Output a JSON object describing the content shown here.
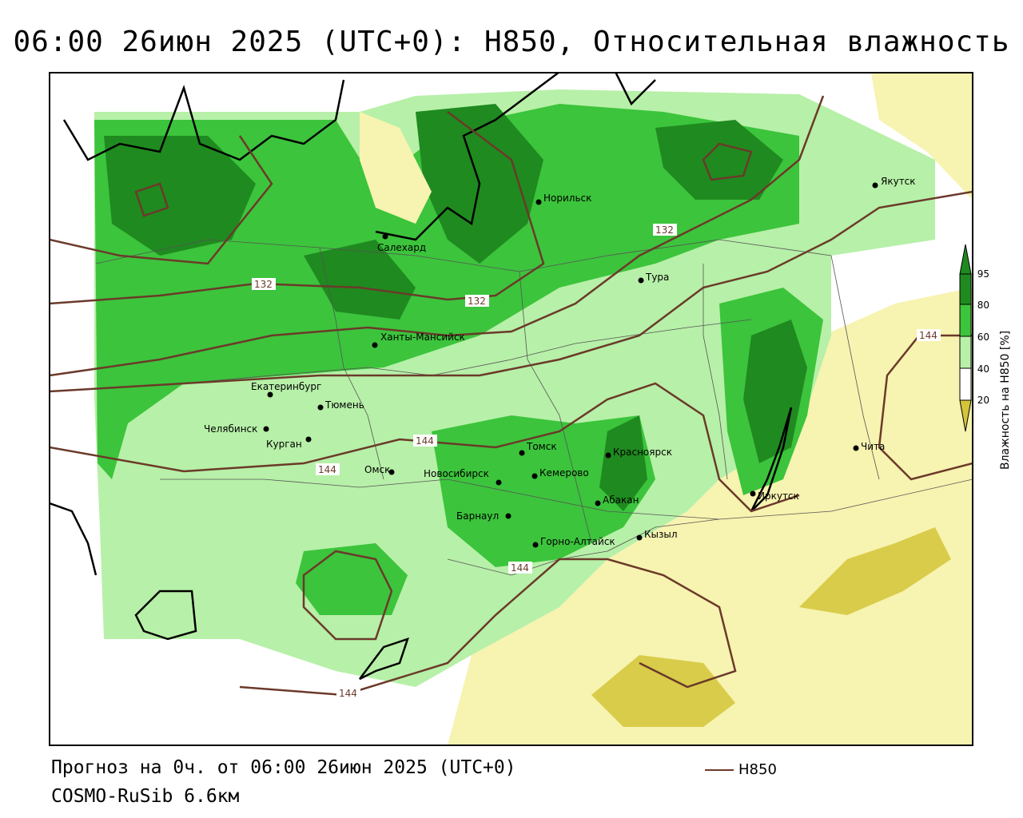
{
  "title": "06:00 26июн 2025 (UTC+0): H850, Относительная влажность",
  "footer": {
    "forecast": "Прогноз на 0ч. от 06:00 26июн 2025 (UTC+0)",
    "model": "COSMO-RuSib 6.6км"
  },
  "legend": {
    "contour_label": "H850",
    "colorbar_title": "Влажность на H850 [%]",
    "ticks": [
      "95",
      "80",
      "60",
      "40",
      "20"
    ],
    "colors": {
      "c95": "#1f8a1f",
      "c80": "#3cc43c",
      "c60": "#b7f0a8",
      "c40": "#ffffff",
      "c20": "#f7f3b0",
      "c0": "#d4c43a"
    },
    "contour_color": "#6b3a2a"
  },
  "contour_values": [
    "132",
    "132",
    "132",
    "144",
    "144",
    "144",
    "144",
    "144"
  ],
  "cities": [
    {
      "name": "Якутск"
    },
    {
      "name": "Норильск"
    },
    {
      "name": "Салехард"
    },
    {
      "name": "Тура"
    },
    {
      "name": "Ханты-Мансийск"
    },
    {
      "name": "Екатеринбург"
    },
    {
      "name": "Тюмень"
    },
    {
      "name": "Челябинск"
    },
    {
      "name": "Курган"
    },
    {
      "name": "Омск"
    },
    {
      "name": "Новосибирск"
    },
    {
      "name": "Томск"
    },
    {
      "name": "Кемерово"
    },
    {
      "name": "Красноярск"
    },
    {
      "name": "Абакан"
    },
    {
      "name": "Барнаул"
    },
    {
      "name": "Горно-Алтайск"
    },
    {
      "name": "Кызыл"
    },
    {
      "name": "Иркутск"
    },
    {
      "name": "Чита"
    }
  ]
}
